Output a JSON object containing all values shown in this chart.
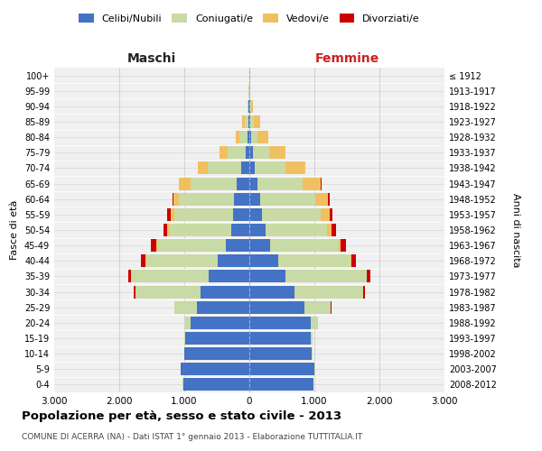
{
  "age_groups": [
    "0-4",
    "5-9",
    "10-14",
    "15-19",
    "20-24",
    "25-29",
    "30-34",
    "35-39",
    "40-44",
    "45-49",
    "50-54",
    "55-59",
    "60-64",
    "65-69",
    "70-74",
    "75-79",
    "80-84",
    "85-89",
    "90-94",
    "95-99",
    "100+"
  ],
  "birth_years": [
    "2008-2012",
    "2003-2007",
    "1998-2002",
    "1993-1997",
    "1988-1992",
    "1983-1987",
    "1978-1982",
    "1973-1977",
    "1968-1972",
    "1963-1967",
    "1958-1962",
    "1953-1957",
    "1948-1952",
    "1943-1947",
    "1938-1942",
    "1933-1937",
    "1928-1932",
    "1923-1927",
    "1918-1922",
    "1913-1917",
    "≤ 1912"
  ],
  "male_celibe": [
    1020,
    1050,
    1000,
    980,
    900,
    800,
    750,
    620,
    490,
    360,
    280,
    250,
    230,
    200,
    120,
    60,
    30,
    15,
    8,
    3,
    2
  ],
  "male_coniugato": [
    5,
    5,
    5,
    20,
    80,
    350,
    1000,
    1200,
    1100,
    1050,
    950,
    900,
    850,
    700,
    520,
    280,
    120,
    60,
    15,
    5,
    2
  ],
  "male_vedovo": [
    1,
    1,
    1,
    1,
    2,
    2,
    5,
    5,
    10,
    20,
    30,
    60,
    80,
    180,
    150,
    120,
    60,
    30,
    10,
    3,
    1
  ],
  "male_divorziato": [
    0,
    0,
    0,
    1,
    3,
    5,
    20,
    40,
    60,
    80,
    60,
    50,
    25,
    8,
    5,
    3,
    2,
    0,
    0,
    0,
    0
  ],
  "female_celibe": [
    980,
    1000,
    960,
    950,
    950,
    850,
    700,
    550,
    450,
    320,
    250,
    200,
    160,
    120,
    80,
    50,
    30,
    20,
    8,
    3,
    2
  ],
  "female_coniugato": [
    8,
    8,
    8,
    25,
    100,
    400,
    1050,
    1250,
    1100,
    1050,
    950,
    900,
    850,
    700,
    480,
    250,
    100,
    50,
    15,
    4,
    1
  ],
  "female_vedovo": [
    1,
    1,
    1,
    1,
    2,
    3,
    5,
    8,
    15,
    35,
    70,
    130,
    200,
    280,
    300,
    250,
    160,
    90,
    30,
    8,
    3
  ],
  "female_divorziato": [
    0,
    0,
    0,
    1,
    3,
    5,
    25,
    50,
    70,
    80,
    70,
    50,
    30,
    8,
    5,
    3,
    2,
    0,
    0,
    0,
    0
  ],
  "colors": {
    "celibe": "#4472C4",
    "coniugato": "#c8daa5",
    "vedovo": "#f0c060",
    "divorziato": "#cc0000"
  },
  "title": "Popolazione per età, sesso e stato civile - 2013",
  "subtitle": "COMUNE DI ACERRA (NA) - Dati ISTAT 1° gennaio 2013 - Elaborazione TUTTITALIA.IT",
  "xlabel_left": "Maschi",
  "xlabel_right": "Femmine",
  "ylabel_left": "Fasce di età",
  "ylabel_right": "Anni di nascita",
  "xlim": 3000,
  "bg_color": "#ffffff",
  "grid_color": "#d0d0d0",
  "legend_labels": [
    "Celibi/Nubili",
    "Coniugati/e",
    "Vedovi/e",
    "Divorziati/e"
  ]
}
